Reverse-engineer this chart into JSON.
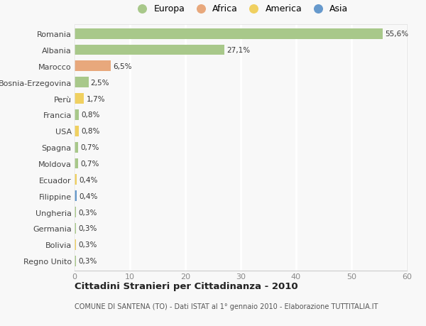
{
  "countries": [
    "Romania",
    "Albania",
    "Marocco",
    "Bosnia-Erzegovina",
    "Perù",
    "Francia",
    "USA",
    "Spagna",
    "Moldova",
    "Ecuador",
    "Filippine",
    "Ungheria",
    "Germania",
    "Bolivia",
    "Regno Unito"
  ],
  "values": [
    55.6,
    27.1,
    6.5,
    2.5,
    1.7,
    0.8,
    0.8,
    0.7,
    0.7,
    0.4,
    0.4,
    0.3,
    0.3,
    0.3,
    0.3
  ],
  "labels": [
    "55,6%",
    "27,1%",
    "6,5%",
    "2,5%",
    "1,7%",
    "0,8%",
    "0,8%",
    "0,7%",
    "0,7%",
    "0,4%",
    "0,4%",
    "0,3%",
    "0,3%",
    "0,3%",
    "0,3%"
  ],
  "continents": [
    "Europa",
    "Europa",
    "Africa",
    "Europa",
    "America",
    "Europa",
    "America",
    "Europa",
    "Europa",
    "America",
    "Asia",
    "Europa",
    "Europa",
    "America",
    "Europa"
  ],
  "continent_colors": {
    "Europa": "#a8c88a",
    "Africa": "#e8a87c",
    "America": "#f0d060",
    "Asia": "#6699cc"
  },
  "legend_order": [
    "Europa",
    "Africa",
    "America",
    "Asia"
  ],
  "title": "Cittadini Stranieri per Cittadinanza - 2010",
  "subtitle": "COMUNE DI SANTENA (TO) - Dati ISTAT al 1° gennaio 2010 - Elaborazione TUTTITALIA.IT",
  "xlim": [
    0,
    60
  ],
  "xticks": [
    0,
    10,
    20,
    30,
    40,
    50,
    60
  ],
  "background_color": "#f8f8f8",
  "grid_color": "#ffffff",
  "bar_height": 0.65
}
